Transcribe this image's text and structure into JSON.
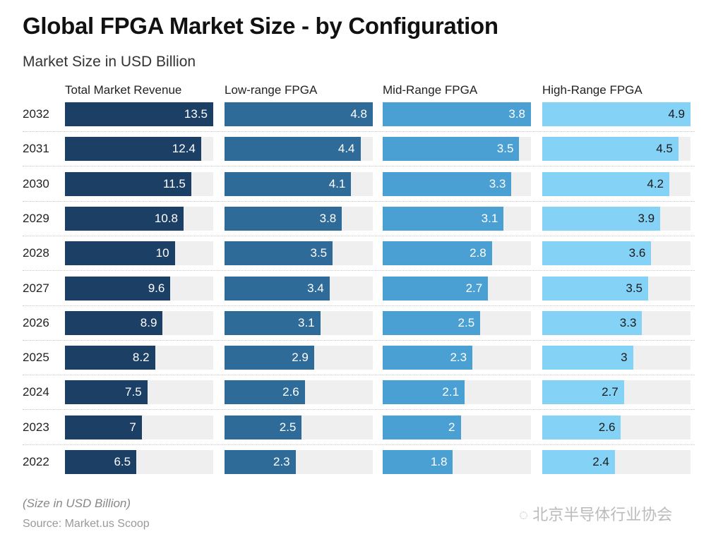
{
  "chart_data": {
    "type": "bar",
    "title": "Global FPGA Market Size - by Configuration",
    "subtitle": "Market Size in USD Billion",
    "categories": [
      "2032",
      "2031",
      "2030",
      "2029",
      "2028",
      "2027",
      "2026",
      "2025",
      "2024",
      "2023",
      "2022"
    ],
    "series": [
      {
        "name": "Total Market Revenue",
        "color": "#1c3f66",
        "text_color": "#ffffff",
        "values": [
          13.5,
          12.4,
          11.5,
          10.8,
          10,
          9.6,
          8.9,
          8.2,
          7.5,
          7,
          6.5
        ]
      },
      {
        "name": "Low-range FPGA",
        "color": "#2f6b98",
        "text_color": "#ffffff",
        "values": [
          4.8,
          4.4,
          4.1,
          3.8,
          3.5,
          3.4,
          3.1,
          2.9,
          2.6,
          2.5,
          2.3
        ]
      },
      {
        "name": "Mid-Range FPGA",
        "color": "#4aa0d2",
        "text_color": "#ffffff",
        "values": [
          3.8,
          3.5,
          3.3,
          3.1,
          2.8,
          2.7,
          2.5,
          2.3,
          2.1,
          2,
          1.8
        ]
      },
      {
        "name": "High-Range FPGA",
        "color": "#84d2f6",
        "text_color": "#1a1a1a",
        "values": [
          4.9,
          4.5,
          4.2,
          3.9,
          3.6,
          3.5,
          3.3,
          3,
          2.7,
          2.6,
          2.4
        ]
      }
    ],
    "note": "(Size in USD Billion)",
    "source": "Source: Market.us Scoop",
    "watermark": "北京半导体行业协会"
  }
}
